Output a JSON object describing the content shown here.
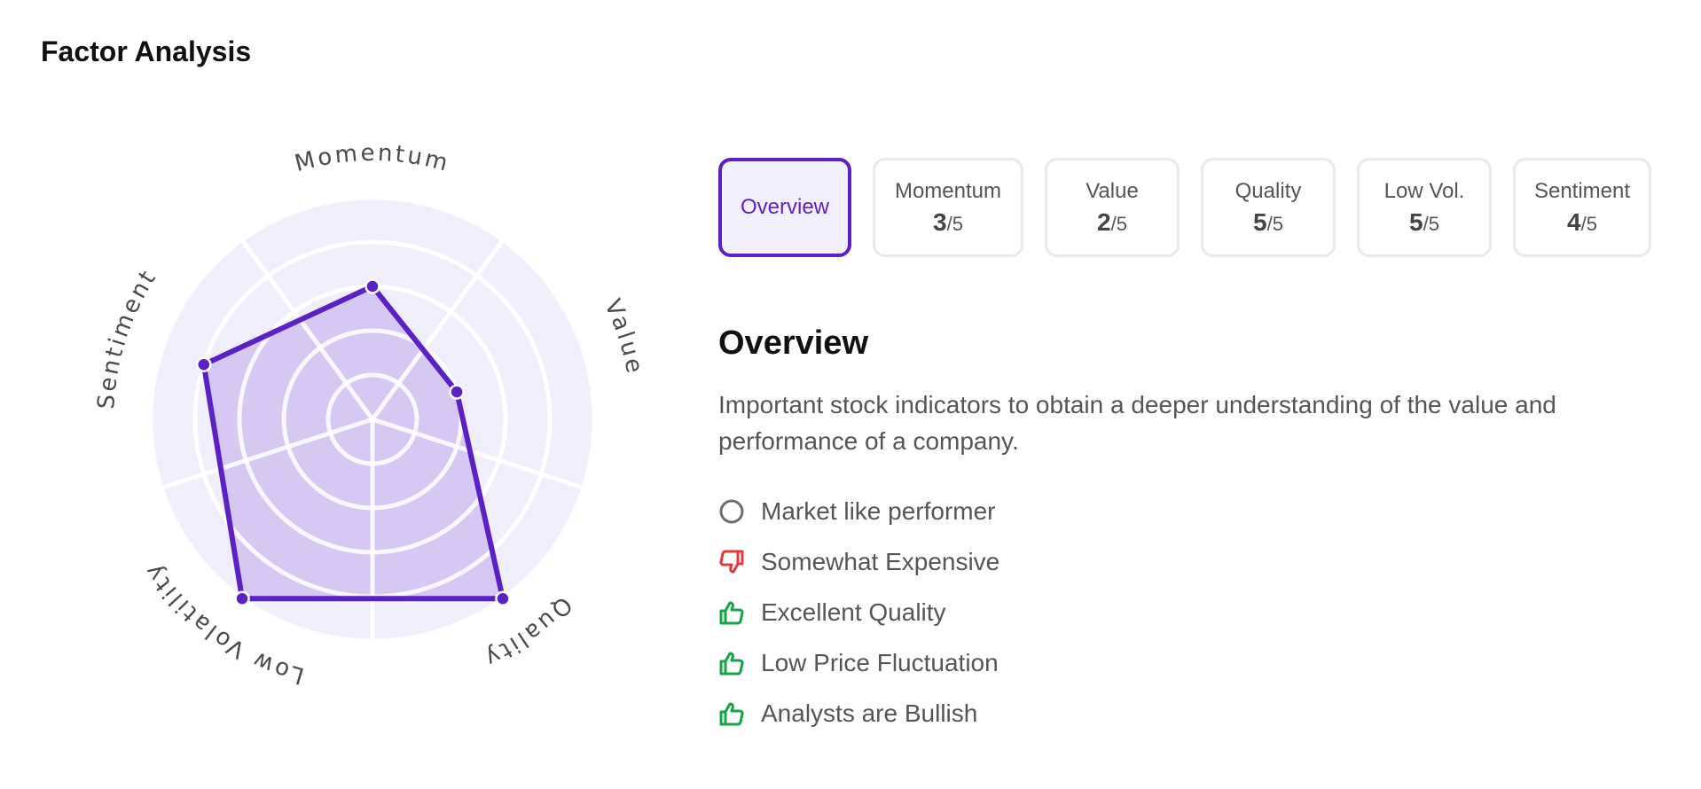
{
  "header": {
    "title": "Factor Analysis"
  },
  "radar": {
    "max_score": 5,
    "axes": [
      {
        "label": "Momentum",
        "score": 3
      },
      {
        "label": "Value",
        "score": 2
      },
      {
        "label": "Quality",
        "score": 5
      },
      {
        "label": "Low Volatility",
        "score": 5
      },
      {
        "label": "Sentiment",
        "score": 4
      }
    ],
    "colors": {
      "accent": "#5b21c4",
      "fill": "#d7c8f3",
      "background": "#f1eefc",
      "grid": "#ffffff"
    }
  },
  "tabs": [
    {
      "id": "overview",
      "name": "Overview",
      "active": true
    },
    {
      "id": "momentum",
      "name": "Momentum",
      "score": "3",
      "denom": "/5"
    },
    {
      "id": "value",
      "name": "Value",
      "score": "2",
      "denom": "/5"
    },
    {
      "id": "quality",
      "name": "Quality",
      "score": "5",
      "denom": "/5"
    },
    {
      "id": "low-vol",
      "name": "Low Vol.",
      "score": "5",
      "denom": "/5"
    },
    {
      "id": "sentiment",
      "name": "Sentiment",
      "score": "4",
      "denom": "/5"
    }
  ],
  "overview": {
    "heading": "Overview",
    "description": "Important stock indicators to obtain a deeper understanding of the value and performance of a company.",
    "indicators": [
      {
        "text": "Market like performer",
        "icon": "circle-outline-icon",
        "color": "#6b6b75"
      },
      {
        "text": "Somewhat Expensive",
        "icon": "thumbs-down-icon",
        "color": "#e5383b"
      },
      {
        "text": "Excellent Quality",
        "icon": "thumbs-up-icon",
        "color": "#16a34a"
      },
      {
        "text": "Low Price Fluctuation",
        "icon": "thumbs-up-icon",
        "color": "#16a34a"
      },
      {
        "text": "Analysts are Bullish",
        "icon": "thumbs-up-icon",
        "color": "#16a34a"
      }
    ]
  }
}
